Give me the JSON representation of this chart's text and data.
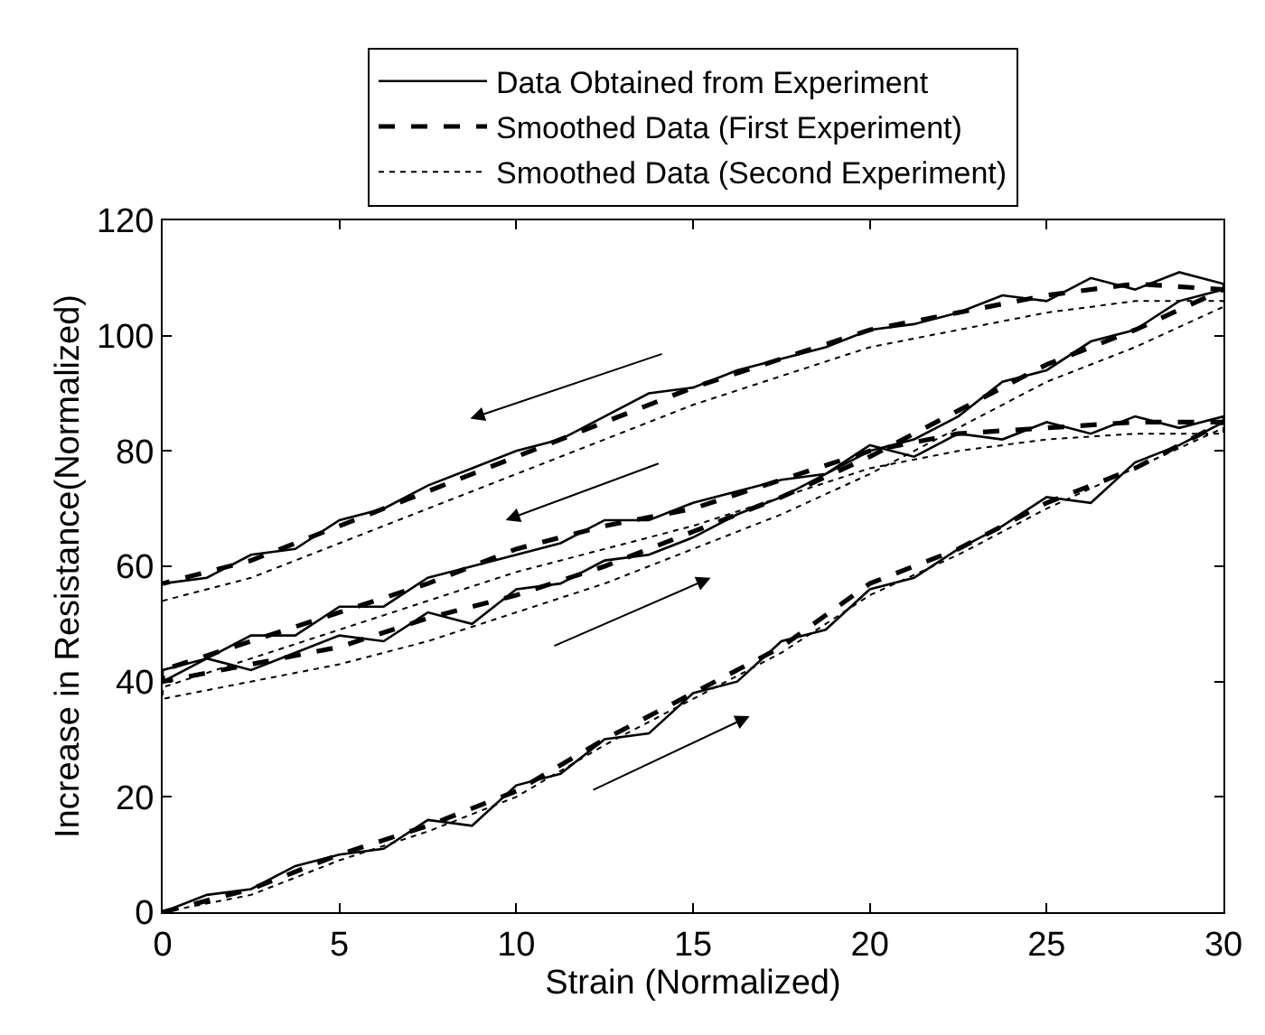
{
  "chart_data": {
    "type": "line",
    "xlabel": "Strain (Normalized)",
    "ylabel": "Increase in Resistance(Normalized)",
    "xlim": [
      0,
      30
    ],
    "xticks": [
      0,
      5,
      10,
      15,
      20,
      25,
      30
    ],
    "ylim": [
      0,
      120
    ],
    "yticks": [
      0,
      20,
      40,
      60,
      80,
      100,
      120
    ],
    "legend": "top",
    "marker": "none",
    "series": [
      {
        "name": "Data Obtained from Experiment",
        "color": "#000000",
        "line_style": "solid",
        "x": [
          0,
          1.25,
          2.5,
          3.75,
          5,
          6.25,
          7.5,
          8.75,
          10,
          11.25,
          12.5,
          13.75,
          15,
          16.25,
          17.5,
          18.75,
          20,
          21.25,
          22.5,
          23.75,
          25,
          26.25,
          27.5,
          28.75,
          30,
          30,
          28.75,
          27.5,
          26.25,
          25,
          23.75,
          22.5,
          21.25,
          20,
          18.75,
          17.5,
          16.25,
          15,
          13.75,
          12.5,
          11.25,
          10,
          8.75,
          7.5,
          6.25,
          5,
          3.75,
          2.5,
          1.25,
          0,
          0,
          1.25,
          2.5,
          3.75,
          5,
          6.25,
          7.5,
          8.75,
          10,
          11.25,
          12.5,
          13.75,
          15,
          16.25,
          17.5,
          18.75,
          20,
          21.25,
          22.5,
          23.75,
          25,
          26.25,
          27.5,
          28.75,
          30,
          30,
          28.75,
          27.5,
          26.25,
          25,
          23.75,
          22.5,
          21.25,
          20,
          18.75,
          17.5,
          16.25,
          15,
          13.75,
          12.5,
          11.25,
          10,
          8.75,
          7.5,
          6.25,
          5,
          3.75,
          2.5,
          1.25,
          0
        ],
        "values": [
          0,
          3,
          4,
          8,
          10,
          11,
          16,
          15,
          22,
          24,
          30,
          31,
          38,
          40,
          47,
          49,
          56,
          58,
          63,
          67,
          72,
          71,
          78,
          81,
          85,
          86,
          84,
          86,
          83,
          85,
          82,
          83,
          79,
          81,
          76,
          75,
          73,
          71,
          68,
          68,
          64,
          62,
          60,
          58,
          53,
          53,
          48,
          48,
          44,
          42,
          40,
          44,
          42,
          45,
          48,
          47,
          52,
          50,
          56,
          57,
          61,
          62,
          65,
          69,
          72,
          76,
          80,
          82,
          86,
          92,
          94,
          99,
          101,
          106,
          108,
          109,
          111,
          108,
          110,
          106,
          107,
          104,
          102,
          101,
          98,
          96,
          94,
          91,
          90,
          86,
          82,
          80,
          77,
          74,
          70,
          68,
          63,
          62,
          58,
          57
        ]
      },
      {
        "name": "Smoothed Data (First Experiment)",
        "color": "#000000",
        "line_style": "dashed",
        "x": [
          0,
          2.5,
          5,
          7.5,
          10,
          12.5,
          15,
          17.5,
          20,
          22.5,
          25,
          27.5,
          30,
          30,
          27.5,
          25,
          22.5,
          20,
          17.5,
          15,
          12.5,
          10,
          7.5,
          5,
          2.5,
          0,
          0,
          2.5,
          5,
          7.5,
          10,
          12.5,
          15,
          17.5,
          20,
          22.5,
          25,
          27.5,
          30,
          30,
          27.5,
          25,
          22.5,
          20,
          17.5,
          15,
          12.5,
          10,
          7.5,
          5,
          2.5,
          0
        ],
        "values": [
          0,
          4,
          10,
          15,
          21,
          30,
          38,
          46,
          57,
          63,
          71,
          77,
          85,
          85,
          85,
          84,
          83,
          80,
          75,
          70,
          67,
          63,
          57,
          52,
          47,
          42,
          40,
          43,
          46,
          51,
          55,
          60,
          66,
          72,
          79,
          87,
          95,
          101,
          108,
          108,
          109,
          107,
          104,
          101,
          96,
          91,
          85,
          79,
          73,
          67,
          61,
          57
        ]
      },
      {
        "name": "Smoothed Data (Second Experiment)",
        "color": "#000000",
        "line_style": "dotted",
        "x": [
          0,
          2.5,
          5,
          7.5,
          10,
          12.5,
          15,
          17.5,
          20,
          22.5,
          25,
          27.5,
          30,
          30,
          27.5,
          25,
          22.5,
          20,
          17.5,
          15,
          12.5,
          10,
          7.5,
          5,
          2.5,
          0,
          0,
          2.5,
          5,
          7.5,
          10,
          12.5,
          15,
          17.5,
          20,
          22.5,
          25,
          27.5,
          30,
          30,
          27.5,
          25,
          22.5,
          20,
          17.5,
          15,
          12.5,
          10,
          7.5,
          5,
          2.5,
          0
        ],
        "values": [
          0,
          3,
          9,
          14,
          20,
          29,
          37,
          45,
          55,
          62,
          70,
          77,
          84,
          83,
          83,
          82,
          80,
          77,
          72,
          67,
          63,
          59,
          54,
          49,
          44,
          39,
          37,
          40,
          43,
          47,
          52,
          57,
          63,
          69,
          76,
          84,
          92,
          98,
          105,
          106,
          106,
          104,
          101,
          98,
          93,
          88,
          82,
          76,
          70,
          64,
          58,
          54
        ]
      }
    ]
  }
}
